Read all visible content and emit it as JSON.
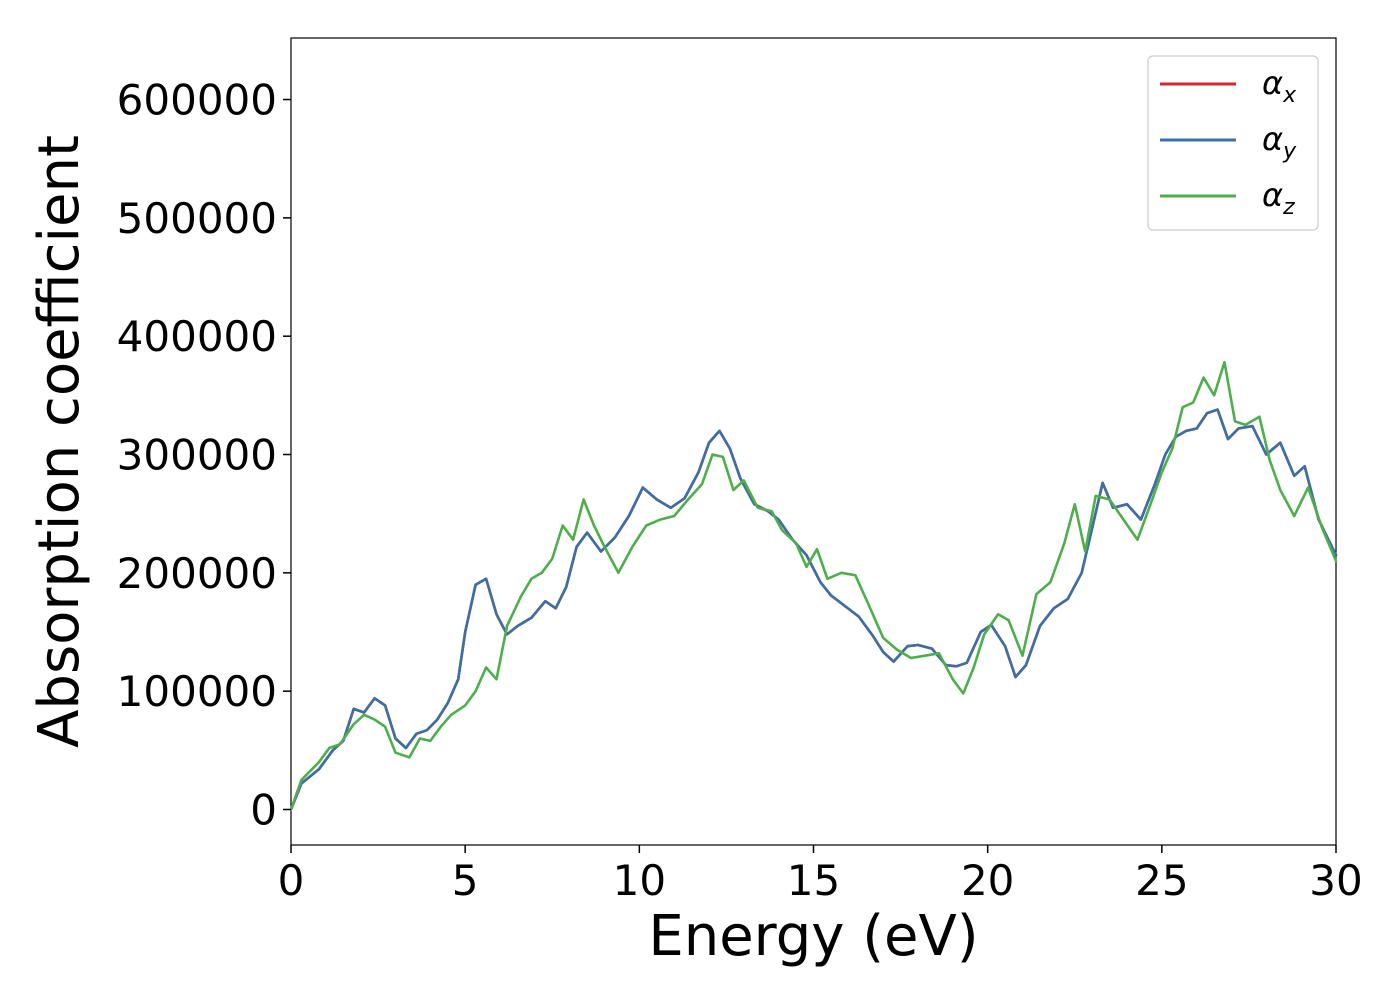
{
  "chart_data": {
    "type": "line",
    "title": "",
    "xlabel": "Energy (eV)",
    "ylabel": "Absorption coefficient",
    "xlim": [
      0,
      30
    ],
    "ylim": [
      -30000,
      652000
    ],
    "xticks": [
      0,
      5,
      10,
      15,
      20,
      25,
      30
    ],
    "xtick_labels": [
      "0",
      "5",
      "10",
      "15",
      "20",
      "25",
      "30"
    ],
    "yticks": [
      0,
      100000,
      200000,
      300000,
      400000,
      500000,
      600000
    ],
    "ytick_labels": [
      "0",
      "100000",
      "200000",
      "300000",
      "400000",
      "500000",
      "600000"
    ],
    "grid": false,
    "legend_position": "top-right",
    "series": [
      {
        "name": "α",
        "subscript": "x",
        "color": "#d62728",
        "x": [
          0,
          0.3,
          0.8,
          1.2,
          1.5,
          1.8,
          2.1,
          2.4,
          2.7,
          3.0,
          3.3,
          3.6,
          3.9,
          4.2,
          4.5,
          4.8,
          5.0,
          5.3,
          5.6,
          5.9,
          6.2,
          6.5,
          6.9,
          7.3,
          7.6,
          7.9,
          8.2,
          8.5,
          8.9,
          9.3,
          9.7,
          10.1,
          10.5,
          10.9,
          11.3,
          11.7,
          12.0,
          12.3,
          12.6,
          12.9,
          13.3,
          13.7,
          14.0,
          14.4,
          14.8,
          15.2,
          15.5,
          15.9,
          16.3,
          16.7,
          17.0,
          17.3,
          17.7,
          18.0,
          18.4,
          18.8,
          19.1,
          19.4,
          19.8,
          20.1,
          20.5,
          20.8,
          21.1,
          21.5,
          21.9,
          22.3,
          22.7,
          23.0,
          23.3,
          23.6,
          24.0,
          24.4,
          24.8,
          25.1,
          25.4,
          25.7,
          26.0,
          26.3,
          26.6,
          26.9,
          27.2,
          27.6,
          28.0,
          28.4,
          28.8,
          29.1,
          29.5,
          30.0
        ],
        "y": [
          0,
          22000,
          34000,
          50000,
          58000,
          85000,
          82000,
          94000,
          88000,
          60000,
          52000,
          64000,
          67000,
          76000,
          90000,
          110000,
          150000,
          190000,
          195000,
          165000,
          148000,
          155000,
          162000,
          176000,
          170000,
          188000,
          222000,
          234000,
          218000,
          230000,
          248000,
          272000,
          262000,
          255000,
          263000,
          285000,
          310000,
          320000,
          305000,
          280000,
          258000,
          252000,
          245000,
          228000,
          215000,
          192000,
          181000,
          172000,
          163000,
          147000,
          133000,
          125000,
          138000,
          139000,
          136000,
          122000,
          121000,
          124000,
          150000,
          156000,
          138000,
          112000,
          122000,
          155000,
          170000,
          178000,
          200000,
          238000,
          276000,
          255000,
          258000,
          245000,
          275000,
          300000,
          315000,
          320000,
          322000,
          335000,
          338000,
          313000,
          322000,
          324000,
          300000,
          310000,
          282000,
          290000,
          245000,
          215000
        ]
      },
      {
        "name": "α",
        "subscript": "y",
        "color": "#3a6fa8",
        "x": [
          0,
          0.3,
          0.8,
          1.2,
          1.5,
          1.8,
          2.1,
          2.4,
          2.7,
          3.0,
          3.3,
          3.6,
          3.9,
          4.2,
          4.5,
          4.8,
          5.0,
          5.3,
          5.6,
          5.9,
          6.2,
          6.5,
          6.9,
          7.3,
          7.6,
          7.9,
          8.2,
          8.5,
          8.9,
          9.3,
          9.7,
          10.1,
          10.5,
          10.9,
          11.3,
          11.7,
          12.0,
          12.3,
          12.6,
          12.9,
          13.3,
          13.7,
          14.0,
          14.4,
          14.8,
          15.2,
          15.5,
          15.9,
          16.3,
          16.7,
          17.0,
          17.3,
          17.7,
          18.0,
          18.4,
          18.8,
          19.1,
          19.4,
          19.8,
          20.1,
          20.5,
          20.8,
          21.1,
          21.5,
          21.9,
          22.3,
          22.7,
          23.0,
          23.3,
          23.6,
          24.0,
          24.4,
          24.8,
          25.1,
          25.4,
          25.7,
          26.0,
          26.3,
          26.6,
          26.9,
          27.2,
          27.6,
          28.0,
          28.4,
          28.8,
          29.1,
          29.5,
          30.0
        ],
        "y": [
          0,
          22000,
          34000,
          50000,
          58000,
          85000,
          82000,
          94000,
          88000,
          60000,
          52000,
          64000,
          67000,
          76000,
          90000,
          110000,
          150000,
          190000,
          195000,
          165000,
          148000,
          155000,
          162000,
          176000,
          170000,
          188000,
          222000,
          234000,
          218000,
          230000,
          248000,
          272000,
          262000,
          255000,
          263000,
          285000,
          310000,
          320000,
          305000,
          280000,
          258000,
          252000,
          245000,
          228000,
          215000,
          192000,
          181000,
          172000,
          163000,
          147000,
          133000,
          125000,
          138000,
          139000,
          136000,
          122000,
          121000,
          124000,
          150000,
          156000,
          138000,
          112000,
          122000,
          155000,
          170000,
          178000,
          200000,
          238000,
          276000,
          255000,
          258000,
          245000,
          275000,
          300000,
          315000,
          320000,
          322000,
          335000,
          338000,
          313000,
          322000,
          324000,
          300000,
          310000,
          282000,
          290000,
          245000,
          215000
        ]
      },
      {
        "name": "α",
        "subscript": "z",
        "color": "#4daf4a",
        "x": [
          0,
          0.3,
          0.8,
          1.1,
          1.4,
          1.8,
          2.1,
          2.4,
          2.7,
          3.0,
          3.4,
          3.7,
          4.0,
          4.3,
          4.6,
          5.0,
          5.3,
          5.6,
          5.9,
          6.2,
          6.6,
          6.9,
          7.2,
          7.5,
          7.8,
          8.1,
          8.4,
          8.7,
          9.0,
          9.4,
          9.8,
          10.2,
          10.6,
          11.0,
          11.4,
          11.8,
          12.1,
          12.4,
          12.7,
          13.0,
          13.4,
          13.8,
          14.1,
          14.5,
          14.8,
          15.1,
          15.4,
          15.8,
          16.2,
          16.6,
          17.0,
          17.4,
          17.8,
          18.2,
          18.6,
          19.0,
          19.3,
          19.6,
          19.9,
          20.3,
          20.6,
          21.0,
          21.4,
          21.8,
          22.2,
          22.5,
          22.8,
          23.1,
          23.5,
          23.9,
          24.3,
          24.7,
          25.0,
          25.3,
          25.6,
          25.9,
          26.2,
          26.5,
          26.8,
          27.1,
          27.4,
          27.8,
          28.1,
          28.4,
          28.8,
          29.2,
          29.6,
          30.0
        ],
        "y": [
          0,
          25000,
          40000,
          52000,
          55000,
          72000,
          80000,
          76000,
          70000,
          48000,
          44000,
          60000,
          58000,
          70000,
          80000,
          88000,
          100000,
          120000,
          110000,
          155000,
          180000,
          195000,
          200000,
          212000,
          240000,
          228000,
          262000,
          240000,
          222000,
          200000,
          222000,
          240000,
          245000,
          248000,
          262000,
          275000,
          300000,
          298000,
          270000,
          278000,
          255000,
          252000,
          236000,
          225000,
          205000,
          220000,
          195000,
          200000,
          198000,
          172000,
          145000,
          135000,
          128000,
          130000,
          132000,
          110000,
          98000,
          120000,
          148000,
          165000,
          160000,
          130000,
          182000,
          192000,
          225000,
          258000,
          218000,
          265000,
          262000,
          245000,
          228000,
          260000,
          285000,
          305000,
          340000,
          344000,
          365000,
          350000,
          378000,
          328000,
          325000,
          332000,
          295000,
          270000,
          248000,
          272000,
          238000,
          210000
        ]
      }
    ]
  }
}
